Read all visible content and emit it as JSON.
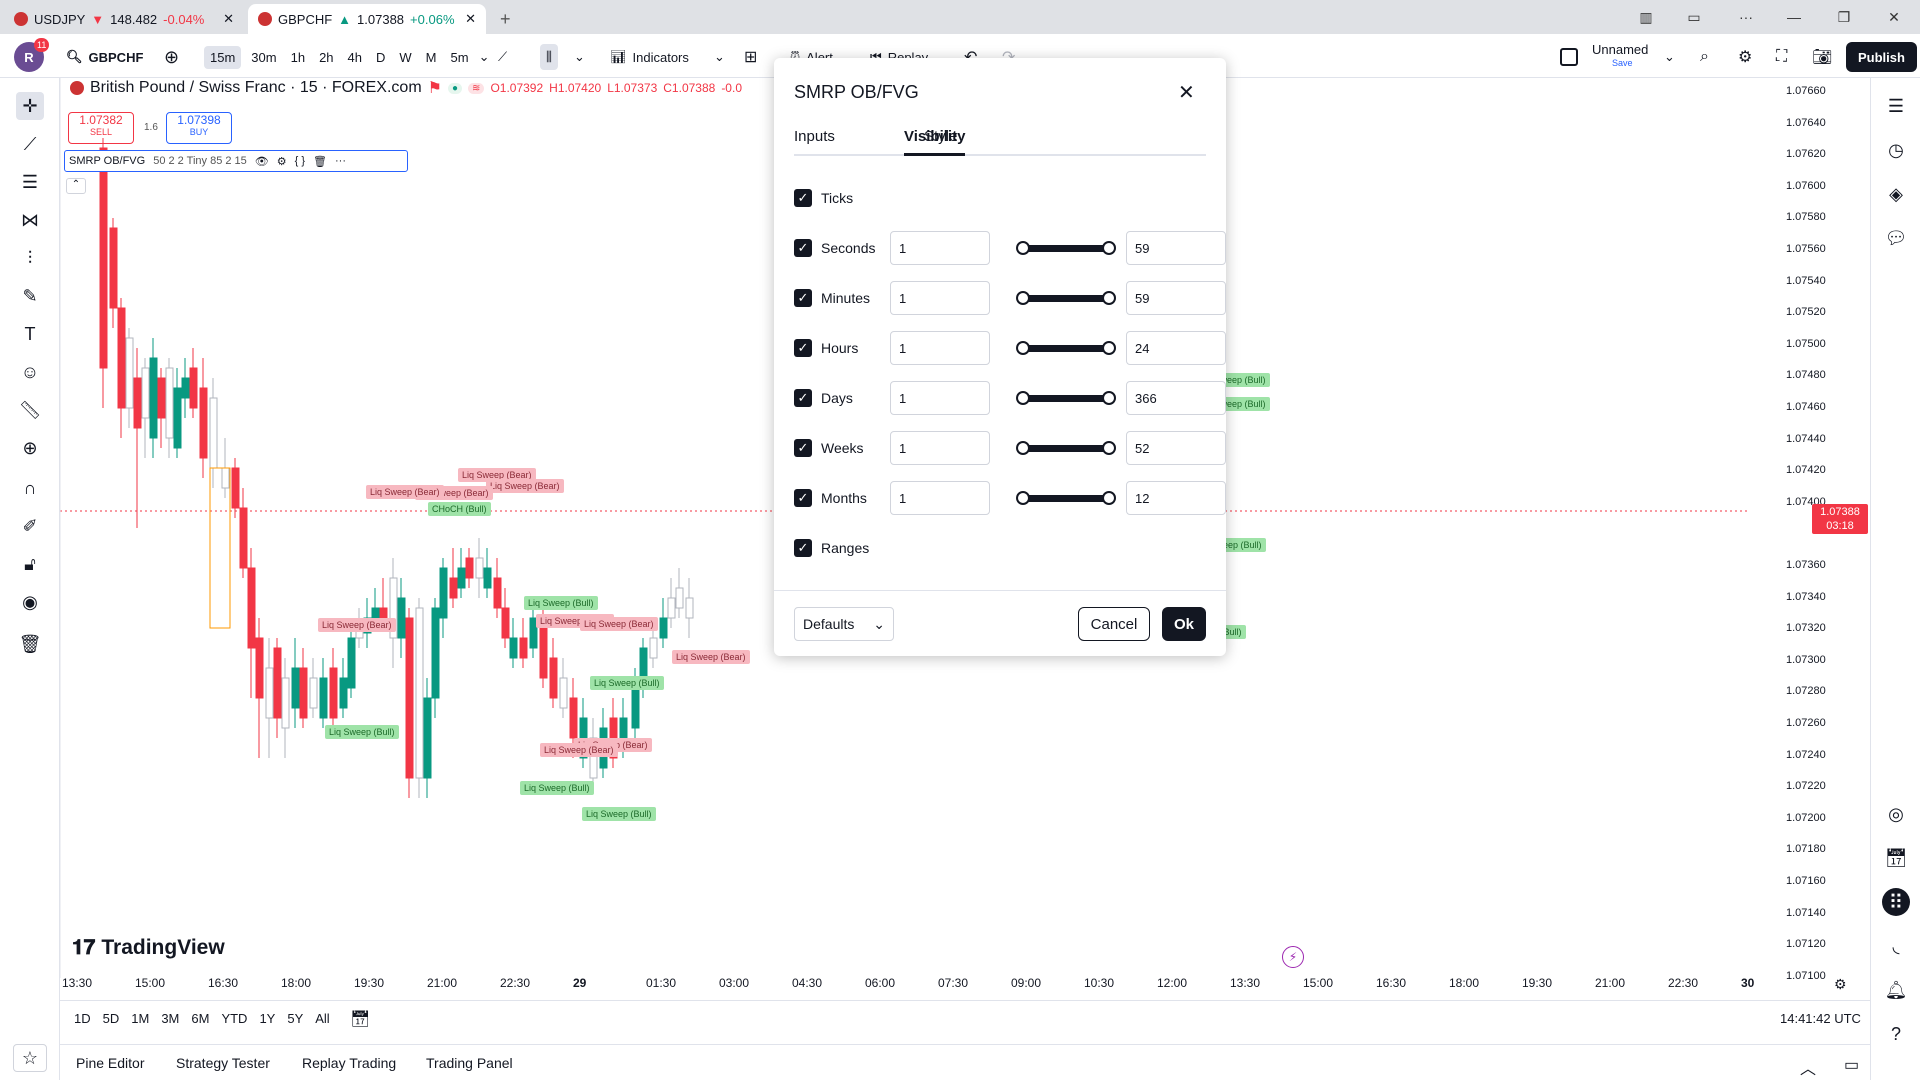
{
  "browser": {
    "tabs": [
      {
        "symbol": "USDJPY",
        "price": "148.482",
        "change": "-0.04%",
        "dir": "down"
      },
      {
        "symbol": "GBPCHF",
        "price": "1.07388",
        "change": "+0.06%",
        "dir": "up"
      }
    ],
    "new_tab": "+"
  },
  "toolbar": {
    "avatar_letter": "R",
    "notif_count": "11",
    "symbol": "GBPCHF",
    "timeframes": [
      "15m",
      "30m",
      "1h",
      "2h",
      "4h",
      "D",
      "W",
      "M",
      "5m"
    ],
    "indicators": "Indicators",
    "alert": "Alert",
    "replay": "Replay",
    "layout_name": "Unnamed",
    "layout_sub": "Save",
    "publish": "Publish"
  },
  "legend": {
    "title": "British Pound / Swiss Franc · 15 · FOREX.com",
    "ohlc": {
      "o": "O1.07392",
      "h": "H1.07420",
      "l": "L1.07373",
      "c": "C1.07388",
      "extra": "-0.0"
    },
    "sell_price": "1.07382",
    "sell_label": "SELL",
    "spread": "1.6",
    "buy_price": "1.07398",
    "buy_label": "BUY",
    "indicator": "SMRP OB/FVG",
    "indicator_params": "50 2 2 Tiny 85 2 15"
  },
  "price_axis": [
    "1.07660",
    "1.07640",
    "1.07620",
    "1.07600",
    "1.07580",
    "1.07560",
    "1.07540",
    "1.07520",
    "1.07500",
    "1.07480",
    "1.07460",
    "1.07440",
    "1.07420",
    "1.07400",
    "1.07360",
    "1.07340",
    "1.07320",
    "1.07300",
    "1.07280",
    "1.07260",
    "1.07240",
    "1.07220",
    "1.07200",
    "1.07180",
    "1.07160",
    "1.07140",
    "1.07120",
    "1.07100"
  ],
  "current_price": {
    "value": "1.07388",
    "countdown": "03:18"
  },
  "time_axis": [
    "13:30",
    "15:00",
    "16:30",
    "18:00",
    "19:30",
    "21:00",
    "22:30",
    "29",
    "01:30",
    "03:00",
    "04:30",
    "06:00",
    "07:30",
    "09:00",
    "10:30",
    "12:00",
    "13:30",
    "15:00",
    "16:30",
    "18:00",
    "19:30",
    "21:00",
    "22:30",
    "30"
  ],
  "labels": {
    "bear": "Liq Sweep (Bear)",
    "bull": "Liq Sweep (Bull)",
    "choch": "CHoCH (Bull)"
  },
  "watermark": "TradingView",
  "bottom": {
    "ranges": [
      "1D",
      "5D",
      "1M",
      "3M",
      "6M",
      "YTD",
      "1Y",
      "5Y",
      "All"
    ],
    "clock": "14:41:42 UTC"
  },
  "footer": {
    "tabs": [
      "Pine Editor",
      "Strategy Tester",
      "Replay Trading",
      "Trading Panel"
    ]
  },
  "dialog": {
    "title": "SMRP OB/FVG",
    "tabs": [
      "Inputs",
      "Style",
      "Visibility"
    ],
    "active_tab": "Visibility",
    "rows": [
      {
        "label": "Ticks",
        "checked": true
      },
      {
        "label": "Seconds",
        "checked": true,
        "min": "1",
        "max": "59"
      },
      {
        "label": "Minutes",
        "checked": true,
        "min": "1",
        "max": "59"
      },
      {
        "label": "Hours",
        "checked": true,
        "min": "1",
        "max": "24"
      },
      {
        "label": "Days",
        "checked": true,
        "min": "1",
        "max": "366"
      },
      {
        "label": "Weeks",
        "checked": true,
        "min": "1",
        "max": "52"
      },
      {
        "label": "Months",
        "checked": true,
        "min": "1",
        "max": "12"
      },
      {
        "label": "Ranges",
        "checked": true
      }
    ],
    "defaults": "Defaults",
    "cancel": "Cancel",
    "ok": "Ok"
  },
  "colors": {
    "up": "#089981",
    "down": "#f23645",
    "accent": "#2962ff"
  }
}
